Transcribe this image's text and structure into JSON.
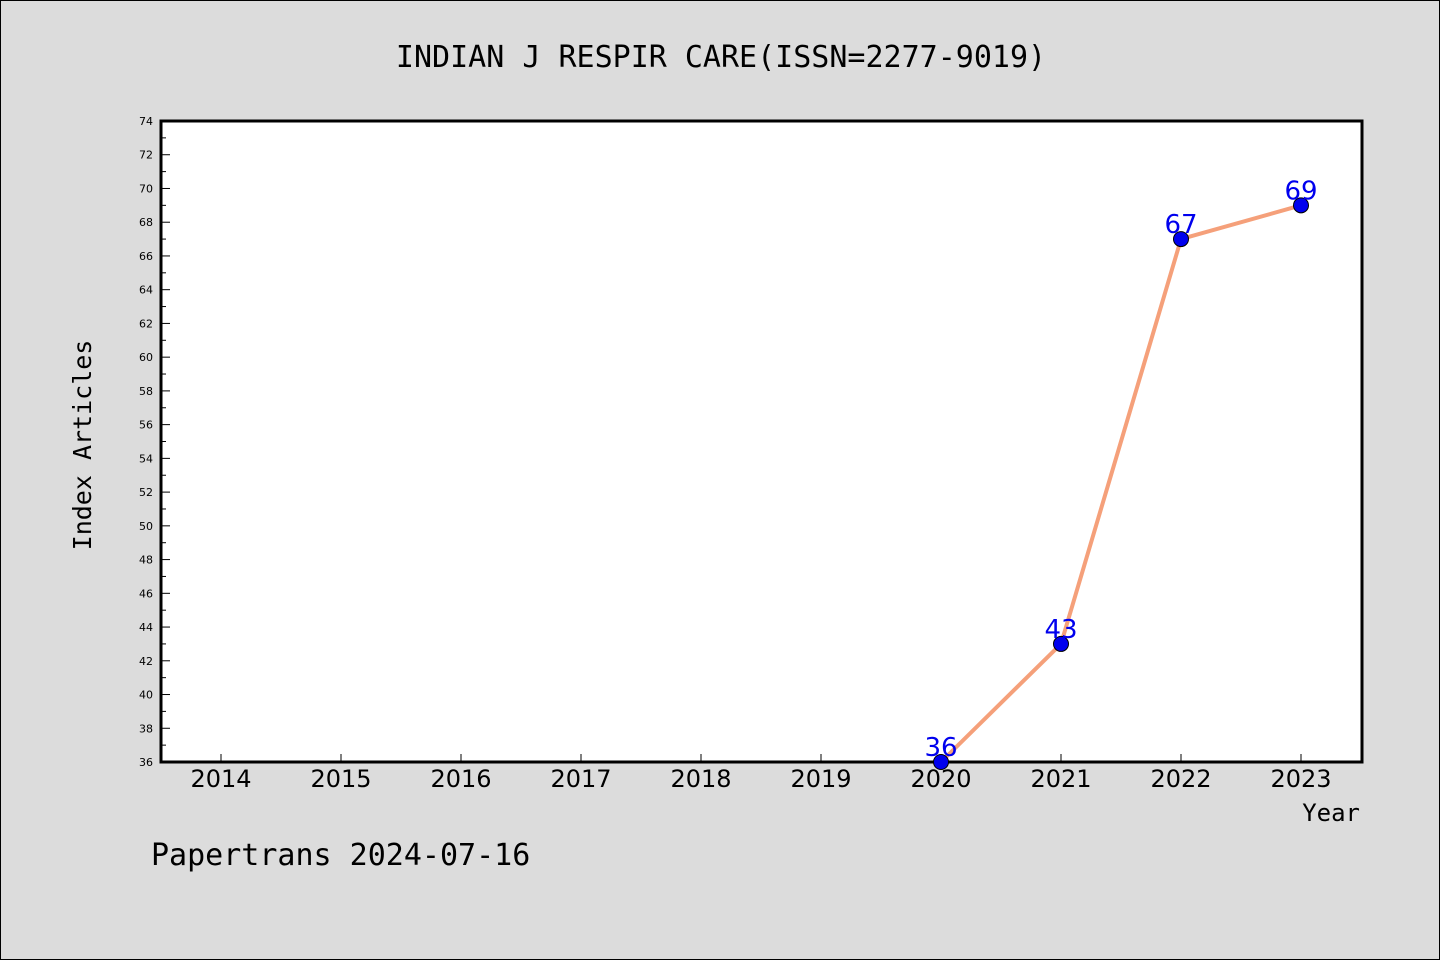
{
  "chart_data": {
    "type": "line",
    "title": "INDIAN J RESPIR CARE(ISSN=2277-9019)",
    "xlabel": "Year",
    "ylabel": "Index Articles",
    "categories": [
      "2014",
      "2015",
      "2016",
      "2017",
      "2018",
      "2019",
      "2020",
      "2021",
      "2022",
      "2023"
    ],
    "series": [
      {
        "x": [
          "2020",
          "2021",
          "2022",
          "2023"
        ],
        "values": [
          36,
          43,
          67,
          69
        ]
      }
    ],
    "ylim": [
      36,
      74
    ],
    "yticks": [
      36,
      38,
      40,
      42,
      44,
      46,
      48,
      50,
      52,
      54,
      56,
      58,
      60,
      62,
      64,
      66,
      68,
      70,
      72,
      74
    ],
    "grid": false,
    "line_color": "#f5a07a",
    "marker_color": "#0000ee",
    "label_color": "#0000ee"
  },
  "footer": {
    "text": "Papertrans 2024-07-16"
  }
}
